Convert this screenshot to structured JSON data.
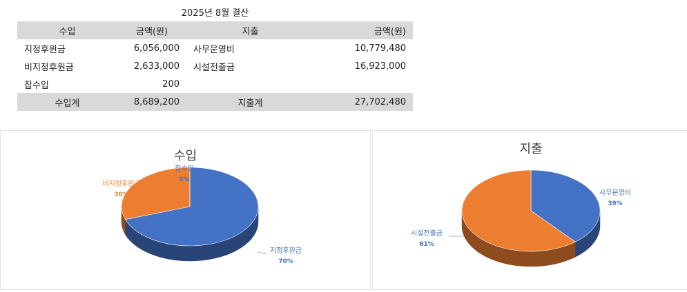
{
  "title": "2025년 8월 결산",
  "table": {
    "headers": [
      "수입",
      "금액(원)",
      "지출",
      "금액(원)"
    ],
    "rows": [
      [
        "지정후원금",
        "6,056,000",
        "사무운영비",
        "10,779,480"
      ],
      [
        "비지정후원금",
        "2,633,000",
        "시설전출금",
        "16,923,000"
      ],
      [
        "잡수입",
        "200",
        "",
        ""
      ]
    ],
    "total": [
      "수입계",
      "8,689,200",
      "지출계",
      "27,702,480"
    ]
  },
  "chart_data": [
    {
      "type": "pie",
      "title": "수입",
      "categories": [
        "지정후원금",
        "비지정후원금",
        "잡수입"
      ],
      "values": [
        6056000,
        2633000,
        200
      ],
      "labels": [
        "70%",
        "30%",
        "0%"
      ],
      "colors": [
        "#4472C4",
        "#ED7D31",
        "#A5A5A5"
      ],
      "label_colors": [
        "#4472C4",
        "#ED7D31",
        "#4472C4"
      ]
    },
    {
      "type": "pie",
      "title": "지출",
      "categories": [
        "사무운영비",
        "시설전출금"
      ],
      "values": [
        10779480,
        16923000
      ],
      "labels": [
        "39%",
        "61%"
      ],
      "colors": [
        "#4472C4",
        "#ED7D31"
      ],
      "label_colors": [
        "#4472C4",
        "#4472C4"
      ]
    }
  ]
}
